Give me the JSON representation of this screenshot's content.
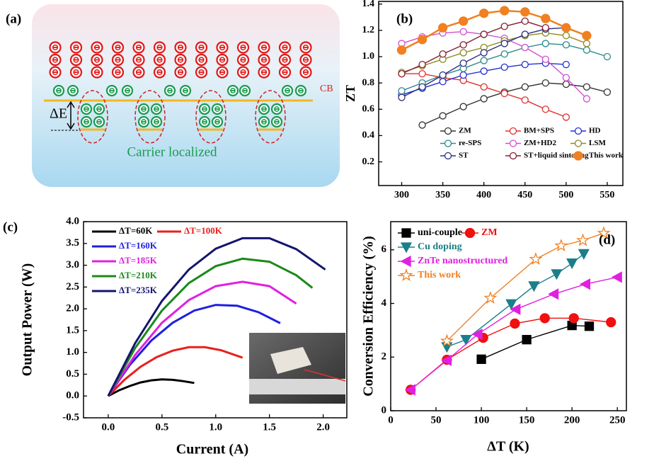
{
  "diagram": {
    "label": "(a)",
    "band_label": "CB",
    "gap_label": "ΔE",
    "caption": "Carrier localized"
  },
  "chart_data": [
    {
      "type": "line",
      "label": "(b)",
      "ylabel": "ZT",
      "x": [
        300,
        325,
        350,
        375,
        400,
        425,
        450,
        475,
        500,
        525,
        550
      ],
      "xlim": [
        272,
        569
      ],
      "xticks": [
        300,
        350,
        400,
        450,
        500,
        550
      ],
      "ylim": [
        0.02,
        1.42
      ],
      "yticks": [
        0.2,
        0.4,
        0.6,
        0.8,
        {
          "value": 1.0,
          "label": "1.0"
        },
        1.2,
        1.4
      ],
      "series": [
        {
          "name": "ZM",
          "color": "#333333",
          "marker": "circle",
          "values": [
            null,
            0.48,
            0.55,
            0.62,
            0.68,
            0.73,
            0.77,
            0.8,
            0.79,
            0.77,
            0.73
          ]
        },
        {
          "name": "BM+SPS",
          "color": "#e03030",
          "marker": "circle",
          "values": [
            0.87,
            0.87,
            0.84,
            0.82,
            0.77,
            0.72,
            0.67,
            0.6,
            0.54,
            null,
            null
          ]
        },
        {
          "name": "HD",
          "color": "#2030d0",
          "marker": "circle",
          "values": [
            0.71,
            0.76,
            0.81,
            0.86,
            0.89,
            0.92,
            0.94,
            0.95,
            0.94,
            null,
            null
          ]
        },
        {
          "name": "re-SPS",
          "color": "#2a8a8a",
          "marker": "circle",
          "values": [
            0.74,
            0.8,
            0.86,
            0.91,
            0.97,
            1.02,
            1.07,
            1.1,
            1.09,
            1.05,
            1.0
          ]
        },
        {
          "name": "ZM+HD2",
          "color": "#d050d0",
          "marker": "circle",
          "values": [
            1.1,
            1.15,
            1.18,
            1.19,
            1.17,
            1.14,
            1.07,
            0.98,
            0.84,
            0.68,
            null
          ]
        },
        {
          "name": "LSM",
          "color": "#8a8a20",
          "marker": "circle",
          "values": [
            0.88,
            0.93,
            0.98,
            1.03,
            1.07,
            1.12,
            1.16,
            1.18,
            1.16,
            1.1,
            null
          ]
        },
        {
          "name": "ST",
          "color": "#303080",
          "marker": "circle",
          "values": [
            0.69,
            0.77,
            0.86,
            0.95,
            1.03,
            1.1,
            1.17,
            1.21,
            1.22,
            null,
            null
          ]
        },
        {
          "name": "ST+liquid sintering",
          "color": "#802030",
          "marker": "circle",
          "values": [
            0.87,
            0.94,
            1.02,
            1.09,
            1.17,
            1.23,
            1.27,
            1.22,
            null,
            null,
            null
          ]
        },
        {
          "name": "This work",
          "color": "#f08020",
          "marker": "filled-circle",
          "values": [
            1.05,
            1.13,
            1.22,
            1.27,
            1.33,
            1.35,
            1.34,
            1.29,
            1.22,
            1.16,
            null
          ]
        }
      ]
    },
    {
      "type": "line",
      "label": "(c)",
      "xlabel": "Current (A)",
      "ylabel": "Output Power (W)",
      "xlim": [
        -0.23,
        2.22
      ],
      "xticks": [
        {
          "value": 0,
          "label": "0.0"
        },
        0.5,
        {
          "value": 1,
          "label": "1.0"
        },
        1.5,
        {
          "value": 2,
          "label": "2.0"
        }
      ],
      "ylim": [
        -0.5,
        4.0
      ],
      "yticks": [
        -0.5,
        {
          "value": 0,
          "label": "0.0"
        },
        0.5,
        {
          "value": 1,
          "label": "1.0"
        },
        1.5,
        {
          "value": 2,
          "label": "2.0"
        },
        2.5,
        {
          "value": 3,
          "label": "3.0"
        },
        3.5,
        {
          "value": 4,
          "label": "4.0"
        }
      ],
      "series": [
        {
          "name": "ΔT=60K",
          "color": "#000000",
          "x": [
            0,
            0.1,
            0.2,
            0.3,
            0.4,
            0.5,
            0.6,
            0.7,
            0.8
          ],
          "values": [
            0,
            0.13,
            0.23,
            0.31,
            0.36,
            0.38,
            0.37,
            0.34,
            0.3
          ]
        },
        {
          "name": "ΔT=100K",
          "color": "#e8201c",
          "x": [
            0,
            0.15,
            0.3,
            0.45,
            0.6,
            0.75,
            0.9,
            1.05,
            1.25
          ],
          "values": [
            0,
            0.37,
            0.67,
            0.89,
            1.04,
            1.12,
            1.12,
            1.05,
            0.88
          ]
        },
        {
          "name": "ΔT=160K",
          "color": "#1f1fe0",
          "x": [
            0,
            0.2,
            0.4,
            0.6,
            0.8,
            1.0,
            1.2,
            1.4,
            1.6
          ],
          "values": [
            0,
            0.71,
            1.27,
            1.68,
            1.96,
            2.09,
            2.07,
            1.92,
            1.67
          ]
        },
        {
          "name": "ΔT=185K",
          "color": "#e020e0",
          "x": [
            0,
            0.25,
            0.5,
            0.75,
            1.0,
            1.25,
            1.5,
            1.75
          ],
          "values": [
            0,
            0.94,
            1.68,
            2.2,
            2.52,
            2.62,
            2.52,
            2.12
          ]
        },
        {
          "name": "ΔT=210K",
          "color": "#1a8a1a",
          "x": [
            0,
            0.25,
            0.5,
            0.75,
            1.0,
            1.25,
            1.5,
            1.75,
            1.9
          ],
          "values": [
            0,
            1.1,
            1.96,
            2.59,
            2.98,
            3.15,
            3.08,
            2.77,
            2.48
          ]
        },
        {
          "name": "ΔT=235K",
          "color": "#14146e",
          "x": [
            0,
            0.25,
            0.5,
            0.75,
            1.0,
            1.25,
            1.5,
            1.75,
            2.02
          ],
          "values": [
            0,
            1.21,
            2.18,
            2.9,
            3.38,
            3.62,
            3.62,
            3.37,
            2.9
          ]
        }
      ]
    },
    {
      "type": "line",
      "label": "(d)",
      "xlabel": "ΔT (K)",
      "ylabel": "Conversion Efficiency (%)",
      "xlim": [
        0,
        260
      ],
      "xticks": [
        0,
        50,
        100,
        150,
        200,
        250
      ],
      "ylim": [
        0,
        7.05
      ],
      "yticks": [
        0,
        2,
        4,
        6
      ],
      "series": [
        {
          "name": "uni-couple",
          "color": "#000000",
          "marker": "square",
          "x": [
            100,
            150,
            200,
            219
          ],
          "values": [
            1.92,
            2.65,
            3.18,
            3.15
          ]
        },
        {
          "name": "ZM",
          "color": "#f01010",
          "marker": "filled-circle",
          "x": [
            22,
            62,
            102,
            137,
            170,
            202,
            243
          ],
          "values": [
            0.78,
            1.9,
            2.72,
            3.25,
            3.45,
            3.45,
            3.3
          ]
        },
        {
          "name": "Cu doping",
          "color": "#1a7f8a",
          "marker": "triangle-down",
          "x": [
            62,
            83,
            133,
            158,
            183,
            200,
            213
          ],
          "values": [
            2.38,
            2.65,
            3.98,
            4.65,
            5.1,
            5.5,
            5.85
          ]
        },
        {
          "name": "ZnTe nanostructured",
          "color": "#e020e0",
          "marker": "triangle-left",
          "x": [
            22,
            62,
            96,
            138,
            180,
            215,
            250
          ],
          "values": [
            0.78,
            1.88,
            2.85,
            3.78,
            4.35,
            4.72,
            4.98
          ]
        },
        {
          "name": "This work",
          "color": "#f08020",
          "marker": "star",
          "x": [
            62,
            110,
            160,
            188,
            212,
            235
          ],
          "values": [
            2.6,
            4.2,
            5.65,
            6.15,
            6.35,
            6.62
          ]
        }
      ]
    }
  ]
}
